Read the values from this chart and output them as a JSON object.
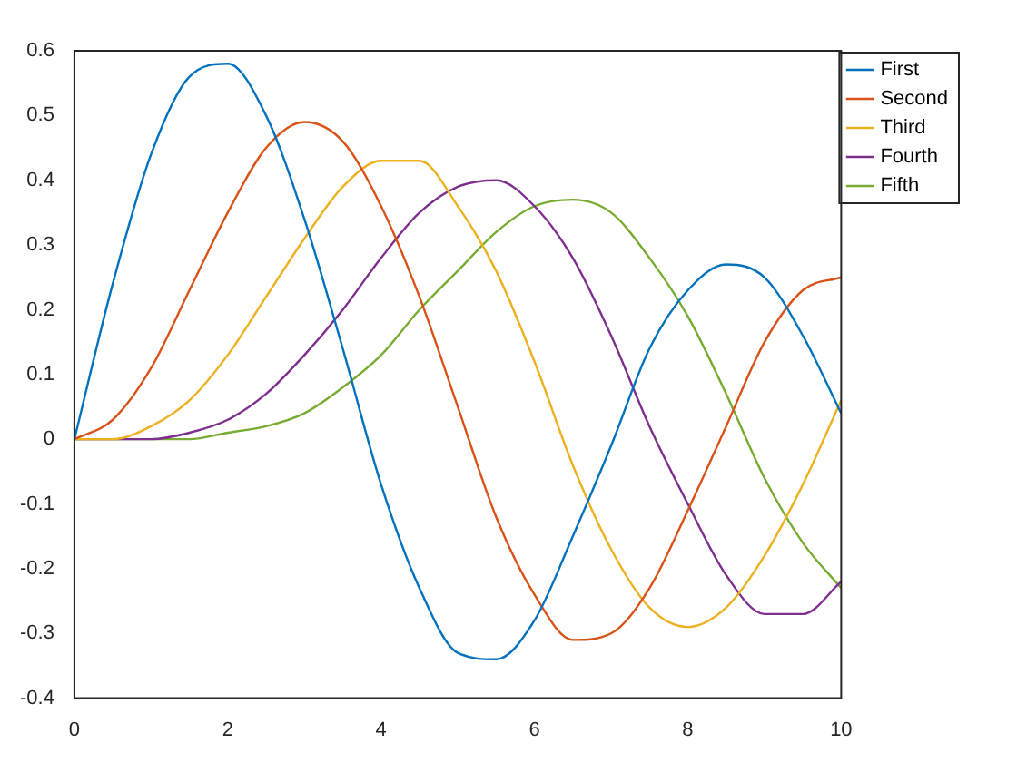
{
  "chart_data": {
    "type": "line",
    "x": [
      0,
      0.5,
      1,
      1.5,
      2,
      2.5,
      3,
      3.5,
      4,
      4.5,
      5,
      5.5,
      6,
      6.5,
      7,
      7.5,
      8,
      8.5,
      9,
      9.5,
      10
    ],
    "series": [
      {
        "name": "First",
        "color": "#0072bd",
        "values": [
          0,
          0.24,
          0.44,
          0.56,
          0.58,
          0.5,
          0.34,
          0.14,
          -0.07,
          -0.23,
          -0.33,
          -0.34,
          -0.28,
          -0.15,
          -0.01,
          0.14,
          0.23,
          0.27,
          0.25,
          0.16,
          0.04
        ]
      },
      {
        "name": "Second",
        "color": "#d95319",
        "values": [
          0,
          0.03,
          0.11,
          0.23,
          0.35,
          0.45,
          0.49,
          0.46,
          0.36,
          0.22,
          0.05,
          -0.12,
          -0.24,
          -0.31,
          -0.3,
          -0.23,
          -0.11,
          0.02,
          0.15,
          0.23,
          0.25
        ]
      },
      {
        "name": "Third",
        "color": "#edb120",
        "values": [
          0,
          0,
          0.02,
          0.06,
          0.13,
          0.22,
          0.31,
          0.39,
          0.43,
          0.43,
          0.36,
          0.26,
          0.12,
          -0.04,
          -0.17,
          -0.26,
          -0.29,
          -0.26,
          -0.18,
          -0.07,
          0.06
        ]
      },
      {
        "name": "Fourth",
        "color": "#7e2f8e",
        "values": [
          0,
          0,
          0,
          0.01,
          0.03,
          0.07,
          0.13,
          0.2,
          0.28,
          0.35,
          0.39,
          0.4,
          0.36,
          0.28,
          0.16,
          0.02,
          -0.1,
          -0.21,
          -0.27,
          -0.27,
          -0.22
        ]
      },
      {
        "name": "Fifth",
        "color": "#77ac30",
        "values": [
          0,
          0,
          0,
          0,
          0.01,
          0.02,
          0.04,
          0.08,
          0.13,
          0.2,
          0.26,
          0.32,
          0.36,
          0.37,
          0.35,
          0.28,
          0.19,
          0.07,
          -0.06,
          -0.16,
          -0.23
        ]
      }
    ],
    "xlim": [
      0,
      10
    ],
    "xticks": [
      0,
      2,
      4,
      6,
      8,
      10
    ],
    "ylim": [
      -0.4,
      0.6
    ],
    "yticks": [
      -0.4,
      -0.3,
      -0.2,
      -0.1,
      0,
      0.1,
      0.2,
      0.3,
      0.4,
      0.5,
      0.6
    ],
    "grid": false,
    "legend": "right",
    "marker": "none",
    "line_style": "solid"
  }
}
